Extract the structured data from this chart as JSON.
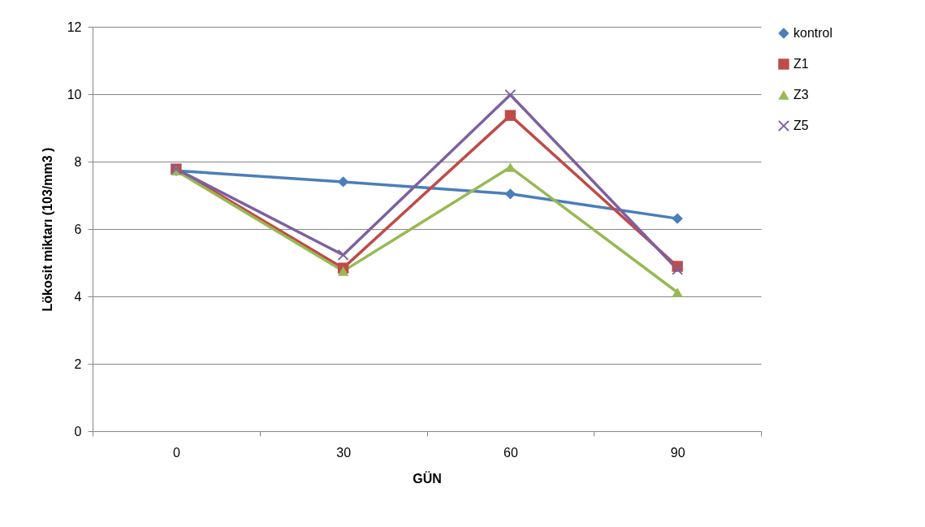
{
  "chart_data": {
    "type": "line",
    "xlabel": "GÜN",
    "ylabel": "Lökosit miktarı (103/mm3 )",
    "categories": [
      "0",
      "30",
      "60",
      "90"
    ],
    "ylim": [
      0,
      12
    ],
    "yticks": [
      0,
      2,
      4,
      6,
      8,
      10,
      12
    ],
    "grid": "y",
    "legend": "right",
    "series": [
      {
        "name": "kontrol",
        "color": "#4a7ebb",
        "marker": "diamond",
        "values": [
          7.73,
          7.4,
          7.04,
          6.31
        ]
      },
      {
        "name": "Z1",
        "color": "#be4b48",
        "marker": "square",
        "values": [
          7.78,
          4.84,
          9.37,
          4.89
        ]
      },
      {
        "name": "Z3",
        "color": "#98b954",
        "marker": "triangle",
        "values": [
          7.73,
          4.75,
          7.83,
          4.12
        ]
      },
      {
        "name": "Z5",
        "color": "#7d60a0",
        "marker": "cross",
        "values": [
          7.78,
          5.23,
          9.98,
          4.8
        ]
      }
    ]
  }
}
